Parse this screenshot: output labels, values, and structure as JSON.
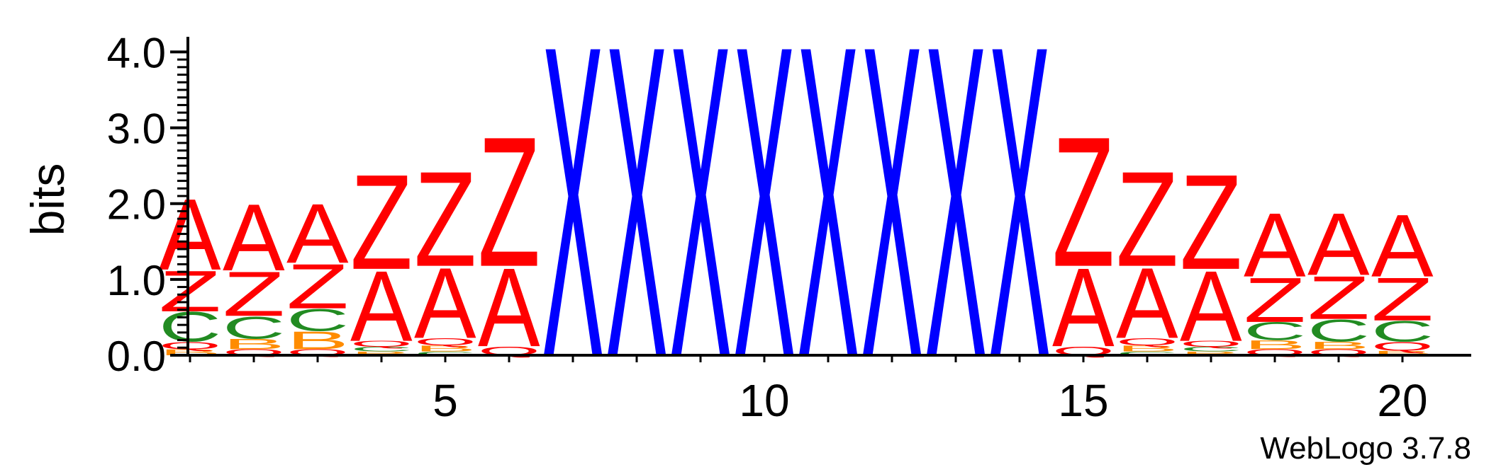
{
  "chart_data": {
    "type": "sequence-logo",
    "ylabel": "bits",
    "ylim": [
      0,
      4.2
    ],
    "yticks": [
      "0.0",
      "1.0",
      "2.0",
      "3.0",
      "4.0"
    ],
    "xticks": [
      "5",
      "10",
      "15",
      "20"
    ],
    "credit": "WebLogo 3.7.8",
    "colors": {
      "A": "#ff0000",
      "Q": "#ff0000",
      "Z": "#ff0000",
      "C": "#228b22",
      "B": "#ff8c00",
      "X": "#0000ff"
    },
    "positions": [
      {
        "pos": 1,
        "stack": [
          [
            "B",
            0.08
          ],
          [
            "Q",
            0.1
          ],
          [
            "C",
            0.4
          ],
          [
            "Z",
            0.55
          ],
          [
            "A",
            0.96
          ]
        ]
      },
      {
        "pos": 2,
        "stack": [
          [
            "Q",
            0.08
          ],
          [
            "B",
            0.14
          ],
          [
            "C",
            0.3
          ],
          [
            "Z",
            0.6
          ],
          [
            "A",
            0.9
          ]
        ]
      },
      {
        "pos": 3,
        "stack": [
          [
            "Q",
            0.08
          ],
          [
            "B",
            0.24
          ],
          [
            "C",
            0.3
          ],
          [
            "Z",
            0.6
          ],
          [
            "A",
            0.8
          ]
        ]
      },
      {
        "pos": 4,
        "stack": [
          [
            "B",
            0.05
          ],
          [
            "C",
            0.06
          ],
          [
            "Q",
            0.08
          ],
          [
            "A",
            0.95
          ],
          [
            "Z",
            1.28
          ]
        ]
      },
      {
        "pos": 5,
        "stack": [
          [
            "C",
            0.05
          ],
          [
            "B",
            0.08
          ],
          [
            "Q",
            0.1
          ],
          [
            "A",
            0.95
          ],
          [
            "Z",
            1.28
          ]
        ]
      },
      {
        "pos": 6,
        "stack": [
          [
            "Q",
            0.12
          ],
          [
            "A",
            1.06
          ],
          [
            "Z",
            1.75
          ]
        ]
      },
      {
        "pos": 7,
        "stack": [
          [
            "X",
            4.2
          ]
        ]
      },
      {
        "pos": 8,
        "stack": [
          [
            "X",
            4.2
          ]
        ]
      },
      {
        "pos": 9,
        "stack": [
          [
            "X",
            4.2
          ]
        ]
      },
      {
        "pos": 10,
        "stack": [
          [
            "X",
            4.2
          ]
        ]
      },
      {
        "pos": 11,
        "stack": [
          [
            "X",
            4.2
          ]
        ]
      },
      {
        "pos": 12,
        "stack": [
          [
            "X",
            4.2
          ]
        ]
      },
      {
        "pos": 13,
        "stack": [
          [
            "X",
            4.2
          ]
        ]
      },
      {
        "pos": 14,
        "stack": [
          [
            "X",
            4.2
          ]
        ]
      },
      {
        "pos": 15,
        "stack": [
          [
            "Q",
            0.12
          ],
          [
            "A",
            1.06
          ],
          [
            "Z",
            1.75
          ]
        ]
      },
      {
        "pos": 16,
        "stack": [
          [
            "C",
            0.05
          ],
          [
            "B",
            0.08
          ],
          [
            "Q",
            0.1
          ],
          [
            "A",
            0.95
          ],
          [
            "Z",
            1.28
          ]
        ]
      },
      {
        "pos": 17,
        "stack": [
          [
            "B",
            0.05
          ],
          [
            "C",
            0.06
          ],
          [
            "Q",
            0.08
          ],
          [
            "A",
            0.95
          ],
          [
            "Z",
            1.28
          ]
        ]
      },
      {
        "pos": 18,
        "stack": [
          [
            "Q",
            0.08
          ],
          [
            "B",
            0.12
          ],
          [
            "C",
            0.24
          ],
          [
            "Z",
            0.6
          ],
          [
            "A",
            0.86
          ]
        ]
      },
      {
        "pos": 19,
        "stack": [
          [
            "Q",
            0.08
          ],
          [
            "B",
            0.1
          ],
          [
            "C",
            0.3
          ],
          [
            "Z",
            0.58
          ],
          [
            "A",
            0.84
          ]
        ]
      },
      {
        "pos": 20,
        "stack": [
          [
            "B",
            0.06
          ],
          [
            "Q",
            0.12
          ],
          [
            "C",
            0.28
          ],
          [
            "Z",
            0.58
          ],
          [
            "A",
            0.84
          ]
        ]
      }
    ]
  }
}
